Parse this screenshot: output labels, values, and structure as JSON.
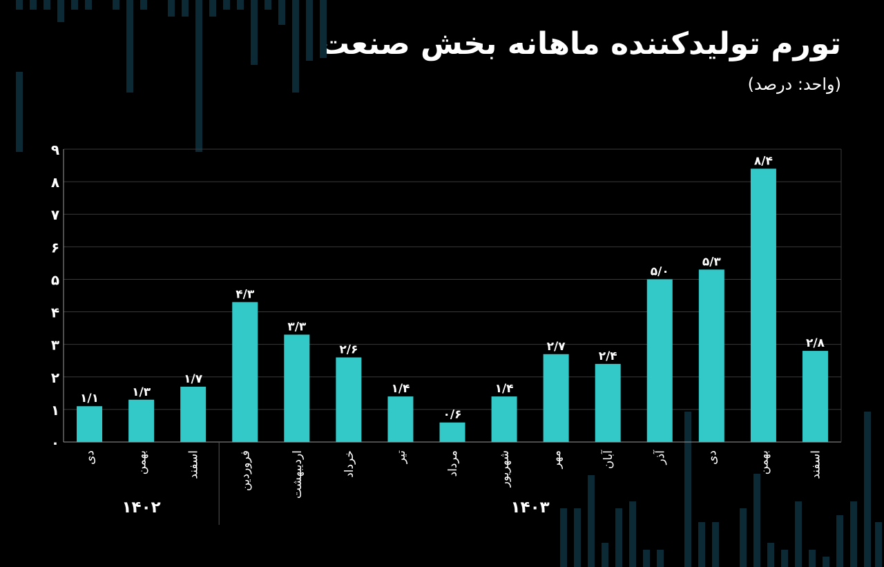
{
  "title": "تورم تولیدکننده ماهانه بخش صنعت",
  "subtitle": "(واحد: درصد)",
  "colors": {
    "background": "#000000",
    "bar": "#33c9c9",
    "grid": "#3a3a3a",
    "text": "#ffffff",
    "decor": "#0c2a36"
  },
  "chart_data": {
    "type": "bar",
    "ylim": [
      0,
      9
    ],
    "yticks": [
      "۰",
      "۱",
      "۲",
      "۳",
      "۴",
      "۵",
      "۶",
      "۷",
      "۸",
      "۹"
    ],
    "grid": true,
    "categories": [
      "دی",
      "بهمن",
      "اسفند",
      "فروردین",
      "اردیبهشت",
      "خرداد",
      "تیر",
      "مرداد",
      "شهریور",
      "مهر",
      "آبان",
      "آذر",
      "دی",
      "بهمن",
      "اسفند"
    ],
    "values": [
      1.1,
      1.3,
      1.7,
      4.3,
      3.3,
      2.6,
      1.4,
      0.6,
      1.4,
      2.7,
      2.4,
      5.0,
      5.3,
      8.4,
      2.8
    ],
    "value_labels": [
      "۱/۱",
      "۱/۳",
      "۱/۷",
      "۴/۳",
      "۳/۳",
      "۲/۶",
      "۱/۴",
      "۰/۶",
      "۱/۴",
      "۲/۷",
      "۲/۴",
      "۵/۰",
      "۵/۳",
      "۸/۴",
      "۲/۸"
    ],
    "groups": [
      {
        "label": "۱۴۰۲",
        "count": 3
      },
      {
        "label": "۱۴۰۳",
        "count": 12
      }
    ]
  }
}
